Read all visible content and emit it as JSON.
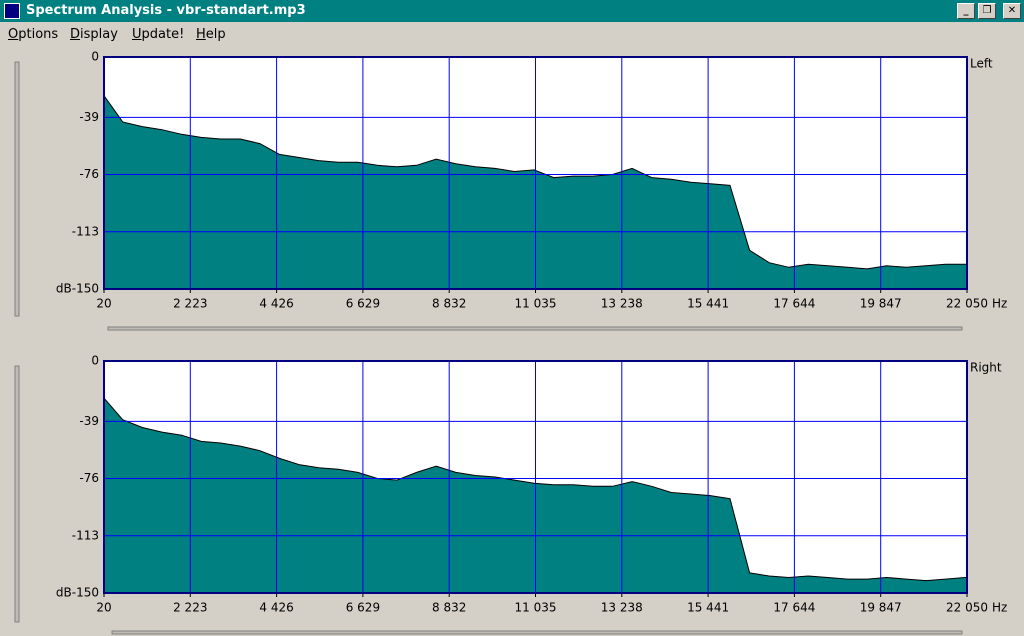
{
  "window": {
    "title": "Spectrum Analysis - vbr-standart.mp3"
  },
  "menu": [
    "Options",
    "Display",
    "Update!",
    "Help"
  ],
  "chart_data": [
    {
      "type": "area",
      "title": "Left",
      "x_label": "Hz",
      "color": "#008080",
      "grid": true,
      "x": [
        20,
        500,
        1000,
        1500,
        2000,
        2500,
        3000,
        3500,
        4000,
        4500,
        5000,
        5500,
        6000,
        6500,
        7000,
        7500,
        8000,
        8500,
        9000,
        9500,
        10000,
        10500,
        11000,
        11500,
        12000,
        12500,
        13000,
        13500,
        14000,
        14500,
        15000,
        15500,
        16000,
        16500,
        17000,
        17500,
        18000,
        18500,
        19000,
        19500,
        20000,
        20500,
        21000,
        21500,
        22000,
        22050
      ],
      "values": [
        -25,
        -42,
        -45,
        -47,
        -50,
        -52,
        -53,
        -53,
        -56,
        -63,
        -65,
        -67,
        -68,
        -68,
        -70,
        -71,
        -70,
        -66,
        -69,
        -71,
        -72,
        -74,
        -73,
        -78,
        -77,
        -77,
        -76,
        -72,
        -78,
        -79,
        -81,
        -82,
        -83,
        -125,
        -133,
        -136,
        -134,
        -135,
        -136,
        -137,
        -135,
        -136,
        -135,
        -134,
        -134,
        -134
      ],
      "xlim": [
        20,
        22050
      ],
      "ylim": [
        -150,
        0
      ],
      "xticks": [
        20,
        {
          "value": 2223,
          "label": "2 223"
        },
        {
          "value": 4426,
          "label": "4 426"
        },
        {
          "value": 6629,
          "label": "6 629"
        },
        {
          "value": 8832,
          "label": "8 832"
        },
        {
          "value": 11035,
          "label": "11 035"
        },
        {
          "value": 13238,
          "label": "13 238"
        },
        {
          "value": 15441,
          "label": "15 441"
        },
        {
          "value": 17644,
          "label": "17 644"
        },
        {
          "value": 19847,
          "label": "19 847"
        },
        {
          "value": 22050,
          "label": "22 050"
        }
      ],
      "yticks": [
        0,
        -39,
        -76,
        -113,
        {
          "value": -150,
          "label": "dB-150"
        }
      ]
    },
    {
      "type": "area",
      "title": "Right",
      "x_label": "Hz",
      "color": "#008080",
      "grid": true,
      "x": [
        20,
        500,
        1000,
        1500,
        2000,
        2500,
        3000,
        3500,
        4000,
        4500,
        5000,
        5500,
        6000,
        6500,
        7000,
        7500,
        8000,
        8500,
        9000,
        9500,
        10000,
        10500,
        11000,
        11500,
        12000,
        12500,
        13000,
        13500,
        14000,
        14500,
        15000,
        15500,
        16000,
        16500,
        17000,
        17500,
        18000,
        18500,
        19000,
        19500,
        20000,
        20500,
        21000,
        21500,
        22000,
        22050
      ],
      "values": [
        -24,
        -38,
        -43,
        -46,
        -48,
        -52,
        -53,
        -55,
        -58,
        -63,
        -67,
        -69,
        -70,
        -72,
        -76,
        -77,
        -72,
        -68,
        -72,
        -74,
        -75,
        -77,
        -79,
        -80,
        -80,
        -81,
        -81,
        -78,
        -81,
        -85,
        -86,
        -87,
        -89,
        -137,
        -139,
        -140,
        -139,
        -140,
        -141,
        -141,
        -140,
        -141,
        -142,
        -141,
        -140,
        -140
      ],
      "xlim": [
        20,
        22050
      ],
      "ylim": [
        -150,
        0
      ],
      "xticks": [
        20,
        {
          "value": 2223,
          "label": "2 223"
        },
        {
          "value": 4426,
          "label": "4 426"
        },
        {
          "value": 6629,
          "label": "6 629"
        },
        {
          "value": 8832,
          "label": "8 832"
        },
        {
          "value": 11035,
          "label": "11 035"
        },
        {
          "value": 13238,
          "label": "13 238"
        },
        {
          "value": 15441,
          "label": "15 441"
        },
        {
          "value": 17644,
          "label": "17 644"
        },
        {
          "value": 19847,
          "label": "19 847"
        },
        {
          "value": 22050,
          "label": "22 050"
        }
      ],
      "yticks": [
        0,
        -39,
        -76,
        -113,
        {
          "value": -150,
          "label": "dB-150"
        }
      ]
    }
  ]
}
